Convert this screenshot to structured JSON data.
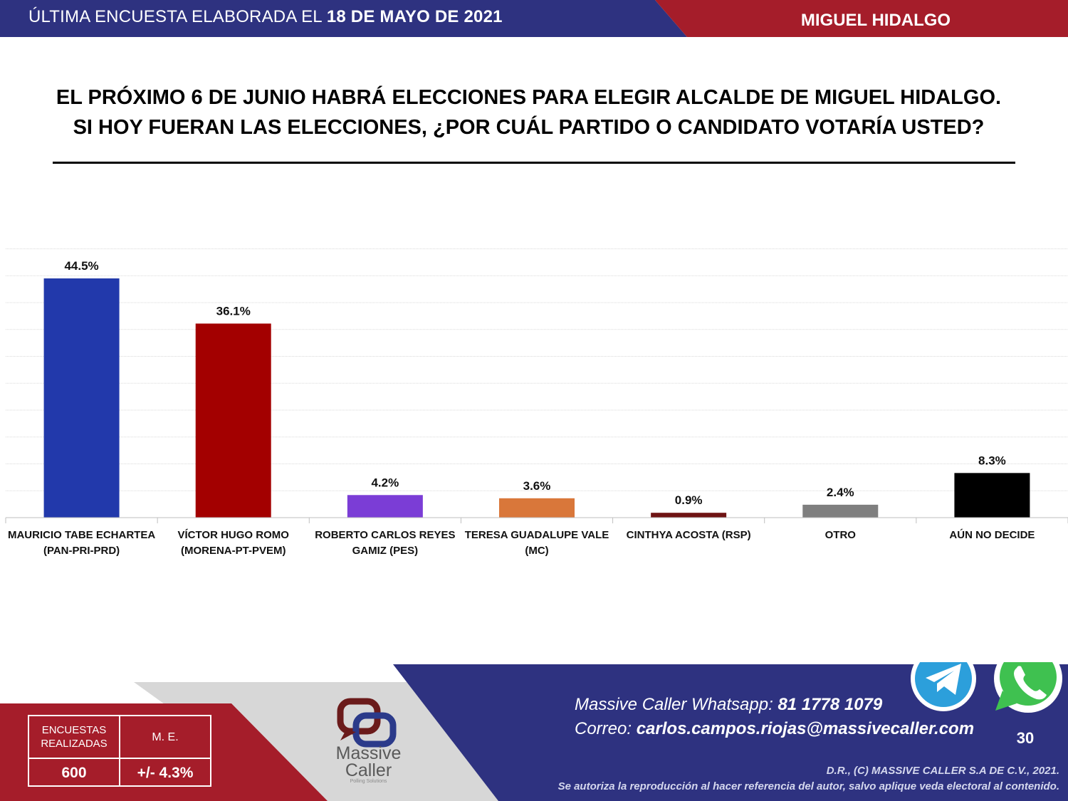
{
  "header": {
    "prefix": "ÚLTIMA ENCUESTA ELABORADA EL",
    "date": "18 DE MAYO DE 2021",
    "region": "MIGUEL HIDALGO"
  },
  "question": {
    "line1": "EL PRÓXIMO 6 DE JUNIO HABRÁ ELECCIONES PARA ELEGIR ALCALDE DE MIGUEL HIDALGO.",
    "line2": "SI HOY FUERAN LAS ELECCIONES, ¿POR CUÁL PARTIDO O CANDIDATO VOTARÍA USTED?"
  },
  "chart_data": {
    "type": "bar",
    "title": "",
    "xlabel": "",
    "ylabel": "",
    "ylim": [
      0,
      50
    ],
    "grid": true,
    "categories": [
      [
        "MAURICIO TABE ECHARTEA",
        "(PAN-PRI-PRD)"
      ],
      [
        "VÍCTOR HUGO ROMO",
        "(MORENA-PT-PVEM)"
      ],
      [
        "ROBERTO CARLOS REYES",
        "GAMIZ (PES)"
      ],
      [
        "TERESA GUADALUPE VALE",
        "(MC)"
      ],
      [
        "CINTHYA ACOSTA (RSP)"
      ],
      [
        "OTRO"
      ],
      [
        "AÚN NO DECIDE"
      ]
    ],
    "values": [
      44.5,
      36.1,
      4.2,
      3.6,
      0.9,
      2.4,
      8.3
    ],
    "value_labels": [
      "44.5%",
      "36.1%",
      "4.2%",
      "3.6%",
      "0.9%",
      "2.4%",
      "8.3%"
    ],
    "colors": [
      "#2239AB",
      "#A30000",
      "#7B3DD6",
      "#D9773A",
      "#6E1313",
      "#7F7F7F",
      "#000000"
    ]
  },
  "footer": {
    "table": {
      "col1_header": "ENCUESTAS REALIZADAS",
      "col2_header": "M. E.",
      "col1_value": "600",
      "col2_value": "+/- 4.3%"
    },
    "logo": {
      "line1": "Massive",
      "line2": "Caller",
      "tagline": "Polling Solutions"
    },
    "contact": {
      "whatsapp_label": "Massive Caller Whatsapp:",
      "whatsapp_number": "81 1778 1079",
      "email_label": "Correo:",
      "email": "carlos.campos.riojas@massivecaller.com"
    },
    "page_number": "30",
    "copyright": "D.R., (C) MASSIVE CALLER S.A DE C.V., 2021.",
    "disclaimer": "Se autoriza la reproducción al hacer referencia del autor, salvo aplique veda electoral al contenido.",
    "icons": [
      "telegram-icon",
      "whatsapp-icon"
    ],
    "colors": {
      "navy": "#2E3280",
      "red": "#A51D2A",
      "gray": "#D7D7D7"
    }
  }
}
